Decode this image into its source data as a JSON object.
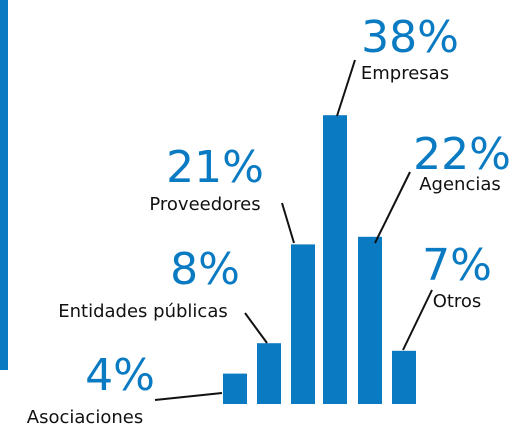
{
  "chart_data": {
    "type": "bar",
    "categories": [
      "Asociaciones",
      "Entidades públicas",
      "Proveedores",
      "Empresas",
      "Agencias",
      "Otros"
    ],
    "values": [
      4,
      8,
      21,
      38,
      22,
      7
    ],
    "value_labels": [
      "4%",
      "8%",
      "21%",
      "38%",
      "22%",
      "7%"
    ],
    "color": "#0a7bc2"
  }
}
